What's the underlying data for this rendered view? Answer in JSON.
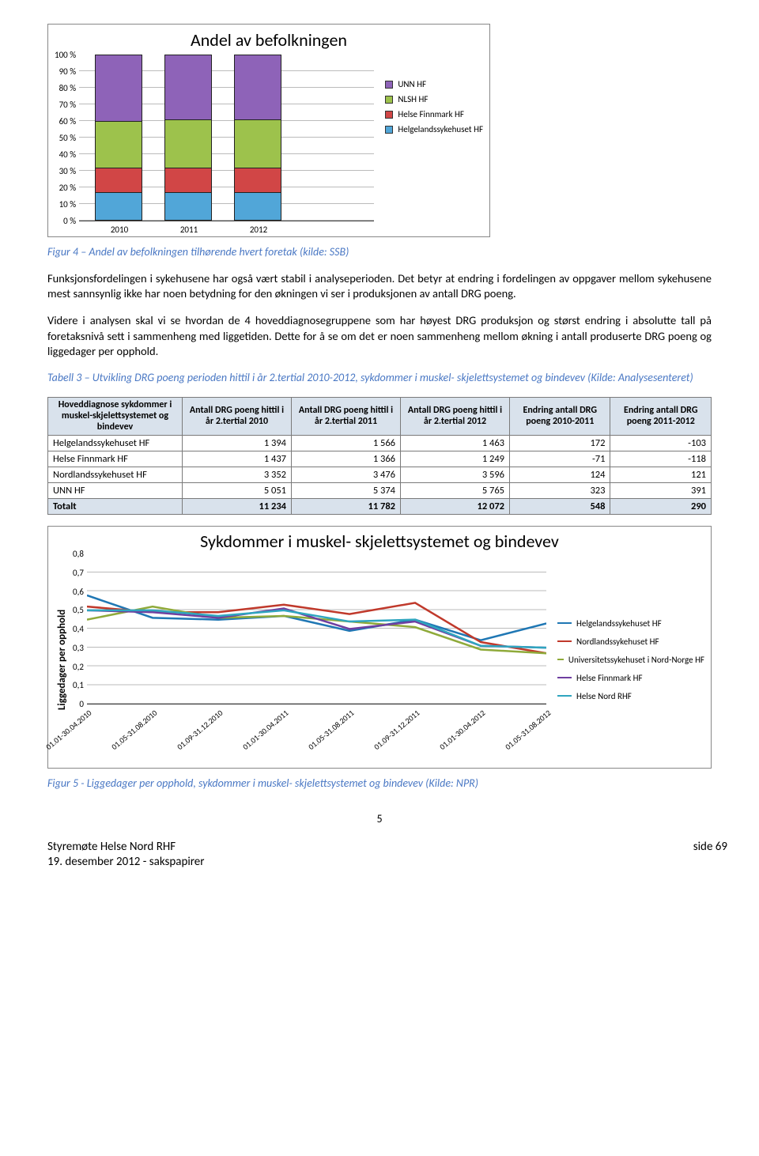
{
  "chart1": {
    "type": "stacked-bar",
    "title": "Andel av befolkningen",
    "background_color": "#ffffff",
    "grid_color": "#bbbbbb",
    "title_fontsize": 22,
    "label_fontsize": 11,
    "ylim": [
      0,
      100
    ],
    "ytick_step": 10,
    "ytick_suffix": " %",
    "categories": [
      "2010",
      "2011",
      "2012"
    ],
    "series": [
      {
        "name": "Helgelandssykehuset HF",
        "color": "#51a6d8",
        "values": [
          17,
          17,
          17
        ]
      },
      {
        "name": "Helse Finnmark HF",
        "color": "#d14646",
        "values": [
          15,
          15,
          15
        ]
      },
      {
        "name": "NLSH HF",
        "color": "#9dc24c",
        "values": [
          28,
          29,
          29
        ]
      },
      {
        "name": "UNN HF",
        "color": "#8e63b8",
        "values": [
          40,
          39,
          39
        ]
      }
    ],
    "legend_order": [
      "UNN HF",
      "NLSH HF",
      "Helse Finnmark HF",
      "Helgelandssykehuset HF"
    ]
  },
  "caption1": "Figur 4 – Andel av befolkningen tilhørende hvert foretak (kilde: SSB)",
  "para1": "Funksjonsfordelingen i sykehusene har også vært stabil i analyseperioden. Det betyr at endring i fordelingen av oppgaver mellom sykehusene mest sannsynlig ikke har noen betydning for den økningen vi ser i produksjonen av antall DRG poeng.",
  "para2": "Videre i analysen skal vi se hvordan de 4 hoveddiagnosegruppene som har høyest DRG produksjon og størst endring i absolutte tall på foretaksnivå sett i sammenheng med liggetiden. Dette for å se om det er noen sammenheng mellom økning i antall produserte DRG poeng og liggedager per opphold.",
  "caption2": "Tabell 3 – Utvikling DRG poeng perioden hittil i år 2.tertial 2010-2012, sykdommer i muskel- skjelettsystemet og bindevev (Kilde: Analysesenteret)",
  "table": {
    "columns": [
      "Hoveddiagnose sykdommer i muskel-skjelettsystemet og bindevev",
      "Antall DRG poeng hittil i år 2.tertial 2010",
      "Antall DRG poeng hittil i år 2.tertial 2011",
      "Antall DRG poeng hittil i år 2.tertial 2012",
      "Endring antall DRG poeng 2010-2011",
      "Endring antall DRG poeng 2011-2012"
    ],
    "rows": [
      [
        "Helgelandssykehuset HF",
        "1 394",
        "1 566",
        "1 463",
        "172",
        "-103"
      ],
      [
        "Helse Finnmark HF",
        "1 437",
        "1 366",
        "1 249",
        "-71",
        "-118"
      ],
      [
        "Nordlandssykehuset HF",
        "3 352",
        "3 476",
        "3 596",
        "124",
        "121"
      ],
      [
        "UNN HF",
        "5 051",
        "5 374",
        "5 765",
        "323",
        "391"
      ]
    ],
    "total": [
      "Totalt",
      "11 234",
      "11 782",
      "12 072",
      "548",
      "290"
    ],
    "header_bg": "#d9e2ec",
    "border_color": "#7a7a7a"
  },
  "chart2": {
    "type": "line",
    "title": "Sykdommer i muskel- skjelettsystemet og bindevev",
    "ylabel": "Liggedager per opphold",
    "background_color": "#ffffff",
    "grid_color": "#bbbbbb",
    "title_fontsize": 22,
    "label_fontsize": 11,
    "line_width": 2.5,
    "ylim": [
      0,
      0.8
    ],
    "ytick_step": 0.1,
    "categories": [
      "01.01-30.04.2010",
      "01.05-31.08.2010",
      "01.09-31.12.2010",
      "01.01-30.04.2011",
      "01.05-31.08.2011",
      "01.09-31.12.2011",
      "01.01-30.04.2012",
      "01.05-31.08.2012"
    ],
    "series": [
      {
        "name": "Helgelandssykehuset HF",
        "color": "#1f77b4",
        "values": [
          0.58,
          0.46,
          0.45,
          0.47,
          0.39,
          0.45,
          0.34,
          0.43
        ]
      },
      {
        "name": "Nordlandssykehuset HF",
        "color": "#c0392b",
        "values": [
          0.52,
          0.49,
          0.49,
          0.53,
          0.48,
          0.54,
          0.33,
          0.27
        ]
      },
      {
        "name": "Universitetssykehuset i Nord-Norge HF",
        "color": "#8faa3a",
        "values": [
          0.45,
          0.52,
          0.46,
          0.47,
          0.44,
          0.41,
          0.29,
          0.27
        ]
      },
      {
        "name": "Helse Finnmark HF",
        "color": "#6f3fa0",
        "values": [
          0.5,
          0.49,
          0.46,
          0.51,
          0.4,
          0.44,
          0.31,
          0.3
        ]
      },
      {
        "name": "Helse Nord RHF",
        "color": "#2fa5bf",
        "values": [
          0.5,
          0.5,
          0.47,
          0.5,
          0.44,
          0.45,
          0.31,
          0.3
        ]
      }
    ]
  },
  "caption3": "Figur 5 - Liggedager per opphold, sykdommer i muskel- skjelettsystemet og bindevev (Kilde: NPR)",
  "page_number": "5",
  "footer_left_1": "Styremøte Helse Nord RHF",
  "footer_left_2": "19. desember 2012 - sakspapirer",
  "footer_right": "side 69",
  "caption_color": "#4a78c4"
}
